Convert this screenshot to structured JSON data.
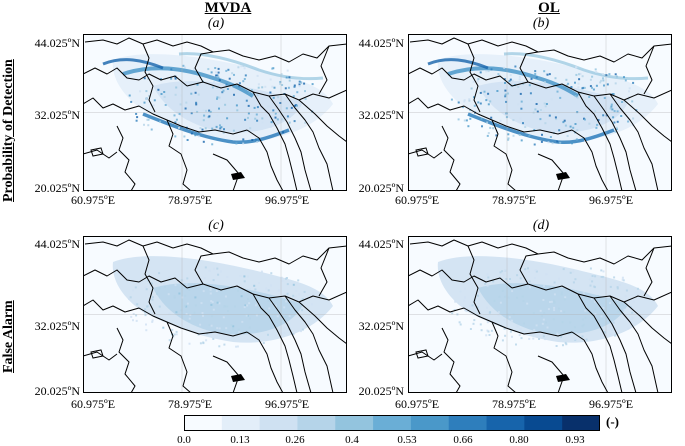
{
  "columns": [
    {
      "title": "MVDA"
    },
    {
      "title": "OL"
    }
  ],
  "rows": [
    {
      "title": "Probability of Detection"
    },
    {
      "title": "False Alarm"
    }
  ],
  "panels": [
    {
      "label": "(a)",
      "metric": "probability_of_detection",
      "run": "MVDA"
    },
    {
      "label": "(b)",
      "metric": "probability_of_detection",
      "run": "OL"
    },
    {
      "label": "(c)",
      "metric": "false_alarm",
      "run": "MVDA"
    },
    {
      "label": "(d)",
      "metric": "false_alarm",
      "run": "OL"
    }
  ],
  "axes": {
    "lat_ticks": [
      "44.025ºN",
      "32.025ºN",
      "20.025ºN"
    ],
    "lon_ticks": [
      "60.975ºE",
      "78.975ºE",
      "96.975ºE"
    ],
    "lat_range": [
      20.025,
      44.025
    ],
    "lon_range": [
      60.975,
      108.975
    ]
  },
  "colorbar": {
    "ticks": [
      "0.0",
      "0.13",
      "0.26",
      "0.4",
      "0.53",
      "0.66",
      "0.80",
      "0.93"
    ],
    "unit": "(-)",
    "colors": [
      "#f7fbff",
      "#e3eef9",
      "#cfe1f2",
      "#b5d4e9",
      "#93c4de",
      "#6aaed6",
      "#4a98c9",
      "#2e7ebc",
      "#1764ab",
      "#084a91",
      "#08306b"
    ]
  }
}
